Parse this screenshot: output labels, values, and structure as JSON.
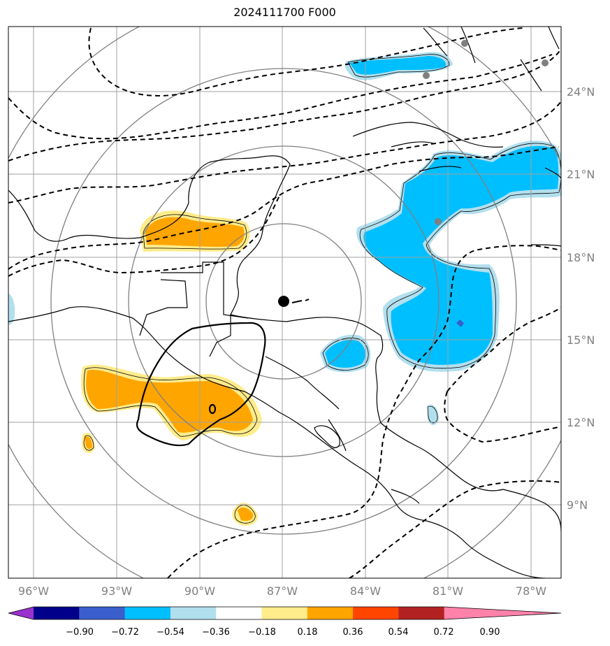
{
  "title": "2024111700 F000",
  "map": {
    "lon_labels": [
      "96°W",
      "93°W",
      "90°W",
      "87°W",
      "84°W",
      "81°W",
      "78°W"
    ],
    "lat_labels": [
      "24°N",
      "21°N",
      "18°N",
      "15°N",
      "12°N",
      "9°N"
    ]
  },
  "colorbar": {
    "tick_labels": [
      "−0.90",
      "−0.72",
      "−0.54",
      "−0.36",
      "−0.18",
      "0.18",
      "0.36",
      "0.54",
      "0.72",
      "0.90"
    ],
    "colors": [
      "#9a32cd",
      "#00008b",
      "#3a5fcd",
      "#00bfff",
      "#b2dfee",
      "#ffffff",
      "#ffec8b",
      "#ffa500",
      "#ff4500",
      "#b22222",
      "#ff82ab"
    ]
  },
  "storm": {
    "marker": "center-dot"
  }
}
